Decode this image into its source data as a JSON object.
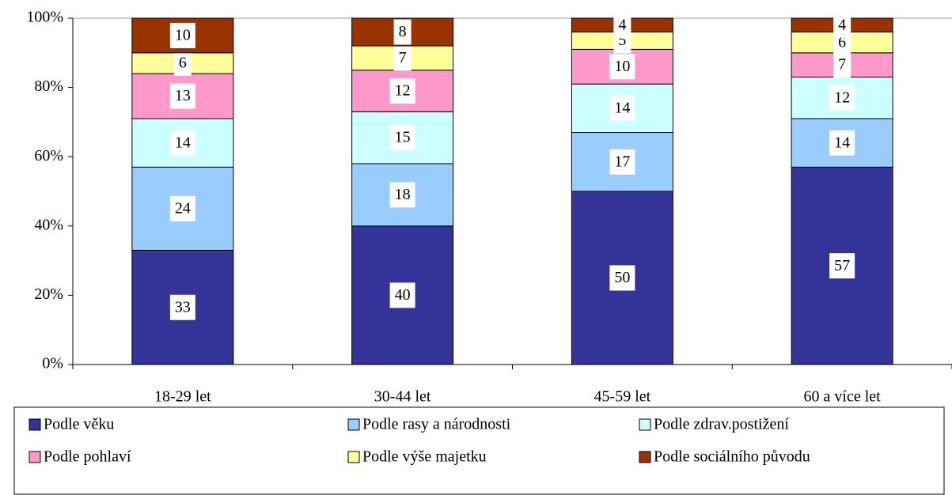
{
  "chart_data": {
    "type": "stacked_bar",
    "categories": [
      "18-29 let",
      "30-44 let",
      "45-59 let",
      "60 a více let"
    ],
    "series": [
      {
        "name": "Podle věku",
        "color": "#333399",
        "values": [
          33,
          40,
          50,
          57
        ]
      },
      {
        "name": "Podle rasy a národnosti",
        "color": "#99ccff",
        "values": [
          24,
          18,
          17,
          14
        ]
      },
      {
        "name": "Podle zdrav.postižení",
        "color": "#ccffff",
        "values": [
          14,
          15,
          14,
          12
        ]
      },
      {
        "name": "Podle pohlaví",
        "color": "#ff99cc",
        "values": [
          13,
          12,
          10,
          7
        ]
      },
      {
        "name": "Podle výše majetku",
        "color": "#ffff99",
        "values": [
          6,
          7,
          5,
          6
        ]
      },
      {
        "name": "Podle sociálního původu",
        "color": "#993300",
        "values": [
          10,
          8,
          4,
          4
        ]
      }
    ],
    "ylim": [
      0,
      100
    ],
    "yticks": [
      {
        "value": 0,
        "label": "0%"
      },
      {
        "value": 20,
        "label": "20%"
      },
      {
        "value": 40,
        "label": "40%"
      },
      {
        "value": 60,
        "label": "60%"
      },
      {
        "value": 80,
        "label": "80%"
      },
      {
        "value": 100,
        "label": "100%"
      }
    ],
    "legend": "bottom"
  }
}
